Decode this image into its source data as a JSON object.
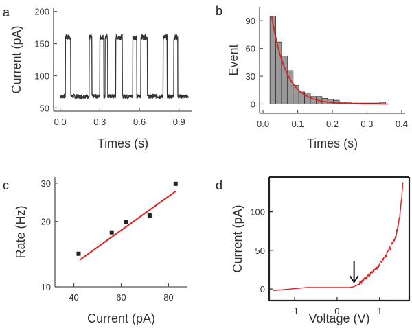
{
  "chart_data": [
    {
      "panel": "a",
      "type": "line",
      "title": "",
      "xlabel": "Times (s)",
      "ylabel": "Current (pA)",
      "xlim": [
        -0.05,
        1.0
      ],
      "ylim": [
        45,
        205
      ],
      "xticks": [
        0.0,
        0.3,
        0.6,
        0.9
      ],
      "xtick_labels": [
        "0.0",
        "0.3",
        "0.6",
        "0.9"
      ],
      "yticks": [
        50,
        100,
        150,
        200
      ],
      "ytick_labels": [
        "50",
        "100",
        "150",
        "200"
      ],
      "baseline_level": 68,
      "blockade_level": 160,
      "pulses": [
        [
          0.04,
          0.08
        ],
        [
          0.22,
          0.24
        ],
        [
          0.3,
          0.33
        ],
        [
          0.34,
          0.36
        ],
        [
          0.42,
          0.47
        ],
        [
          0.55,
          0.58
        ],
        [
          0.61,
          0.66
        ],
        [
          0.78,
          0.81
        ],
        [
          0.86,
          0.89
        ]
      ],
      "x_end": 0.97,
      "color": "#333333"
    },
    {
      "panel": "b",
      "type": "bar",
      "title": "",
      "xlabel": "Times (s)",
      "ylabel": "Event",
      "xlim": [
        -0.01,
        0.41
      ],
      "ylim": [
        -10,
        105
      ],
      "xticks": [
        0.0,
        0.1,
        0.2,
        0.3,
        0.4
      ],
      "xtick_labels": [
        "0.0",
        "0.1",
        "0.2",
        "0.3",
        "0.4"
      ],
      "yticks": [
        0,
        30,
        60,
        90
      ],
      "ytick_labels": [
        "0",
        "30",
        "60",
        "90"
      ],
      "bin_width": 0.0167,
      "bin_starts": [
        0.02,
        0.0367,
        0.0533,
        0.07,
        0.0867,
        0.1033,
        0.12,
        0.1367,
        0.1533,
        0.17,
        0.1867,
        0.2033,
        0.22,
        0.2367,
        0.2533,
        0.27,
        0.2867,
        0.3033,
        0.32,
        0.3367
      ],
      "values": [
        95,
        67,
        52,
        36,
        20,
        13,
        12,
        8,
        8,
        6,
        5,
        4,
        2,
        2,
        1,
        1,
        1,
        1,
        1,
        2
      ],
      "fit": {
        "type": "exponential",
        "A": 95,
        "x0": 0.025,
        "tau": 0.042,
        "x_range": [
          0.025,
          0.36
        ]
      },
      "bar_color": "#9a9a9a",
      "fit_color": "#e02020"
    },
    {
      "panel": "c",
      "type": "scatter",
      "title": "",
      "xlabel": "Current (pA)",
      "ylabel": "Rate (Hz)",
      "yscale": "log",
      "xlim": [
        32,
        88
      ],
      "ylim": [
        10,
        32
      ],
      "xticks": [
        40,
        60,
        80
      ],
      "xtick_labels": [
        "40",
        "60",
        "80"
      ],
      "yticks": [
        10,
        20,
        30
      ],
      "ytick_labels": [
        "10",
        "20",
        "30"
      ],
      "x": [
        42,
        56,
        62,
        72,
        83
      ],
      "y": [
        14.2,
        17.8,
        19.8,
        21.3,
        29.8
      ],
      "fit_line": {
        "x": [
          42.5,
          83
        ],
        "y": [
          13.3,
          27.5
        ]
      },
      "marker_color": "#222222",
      "fit_color": "#e02020"
    },
    {
      "panel": "d",
      "type": "line",
      "title": "",
      "xlabel": "Voltage (V)",
      "ylabel": "Current (pA)",
      "xlim": [
        -1.6,
        1.7
      ],
      "ylim": [
        -15,
        145
      ],
      "xticks": [
        -1,
        0,
        1
      ],
      "xtick_labels": [
        "-1",
        "0",
        "1"
      ],
      "yticks": [
        0,
        50,
        100
      ],
      "ytick_labels": [
        "0",
        "50",
        "100"
      ],
      "x": [
        -1.5,
        -1.3,
        -1.1,
        -0.9,
        -0.7,
        -0.5,
        -0.3,
        -0.1,
        0.1,
        0.3,
        0.4,
        0.5,
        0.6,
        0.7,
        0.8,
        0.9,
        1.0,
        1.1,
        1.2,
        1.3,
        1.4,
        1.45,
        1.5,
        1.55
      ],
      "y": [
        -2,
        -1,
        0,
        1,
        2,
        2,
        2,
        2,
        2,
        2,
        3,
        6,
        10,
        15,
        20,
        26,
        32,
        40,
        48,
        58,
        72,
        85,
        105,
        138
      ],
      "arrow_x": 0.4,
      "color": "#e02020"
    }
  ],
  "panel_labels": {
    "a": "a",
    "b": "b",
    "c": "c",
    "d": "d"
  }
}
